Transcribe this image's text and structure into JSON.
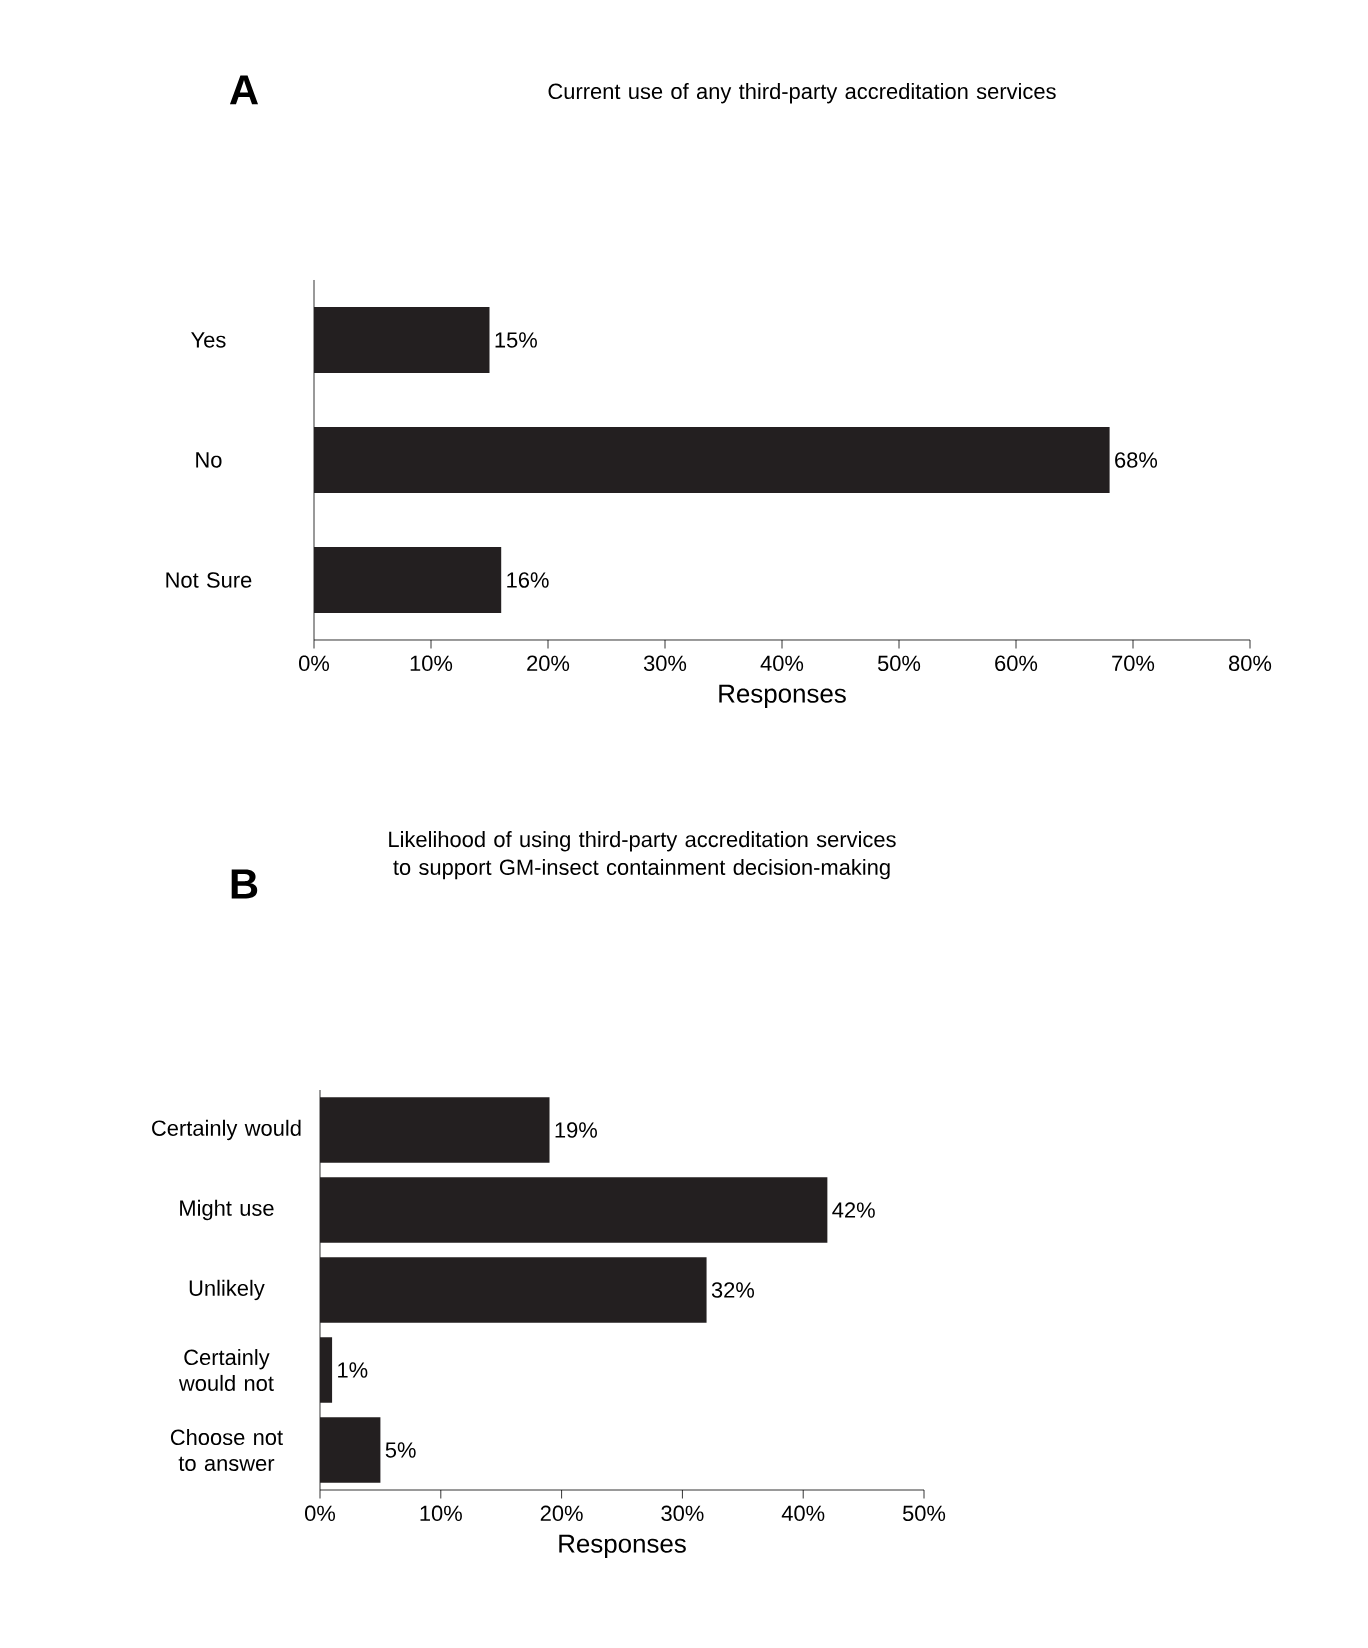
{
  "chart_data": [
    {
      "type": "bar",
      "orientation": "horizontal",
      "title": "Current use of any third-party accreditation services",
      "xlabel": "Responses",
      "annotations": [
        "A"
      ],
      "categories": [
        "Yes",
        "No",
        "Not Sure"
      ],
      "values": [
        15,
        68,
        16
      ],
      "value_labels": [
        "15%",
        "68%",
        "16%"
      ],
      "color": "#231f20",
      "xlim": [
        0,
        80
      ],
      "xticks": [
        {
          "value": 0,
          "label": "0%"
        },
        {
          "value": 10,
          "label": "10%"
        },
        {
          "value": 20,
          "label": "20%"
        },
        {
          "value": 30,
          "label": "30%"
        },
        {
          "value": 40,
          "label": "40%"
        },
        {
          "value": 50,
          "label": "50%"
        },
        {
          "value": 60,
          "label": "60%"
        },
        {
          "value": 70,
          "label": "70%"
        },
        {
          "value": 80,
          "label": "80%"
        }
      ]
    },
    {
      "type": "bar",
      "orientation": "horizontal",
      "title": "Likelihood of using third-party accreditation services to support GM-insect containment decision-making",
      "xlabel": "Responses",
      "annotations": [
        "B"
      ],
      "categories": [
        "Certainly would",
        "Might use",
        "Unlikely",
        "Certainly would not",
        "Choose not to answer"
      ],
      "values": [
        19,
        42,
        32,
        1,
        5
      ],
      "value_labels": [
        "19%",
        "42%",
        "32%",
        "1%",
        "5%"
      ],
      "color": "#231f20",
      "xlim": [
        0,
        50
      ],
      "xticks": [
        {
          "value": 0,
          "label": "0%"
        },
        {
          "value": 10,
          "label": "10%"
        },
        {
          "value": 20,
          "label": "20%"
        },
        {
          "value": 30,
          "label": "30%"
        },
        {
          "value": 40,
          "label": "40%"
        },
        {
          "value": 50,
          "label": "50%"
        }
      ]
    }
  ]
}
